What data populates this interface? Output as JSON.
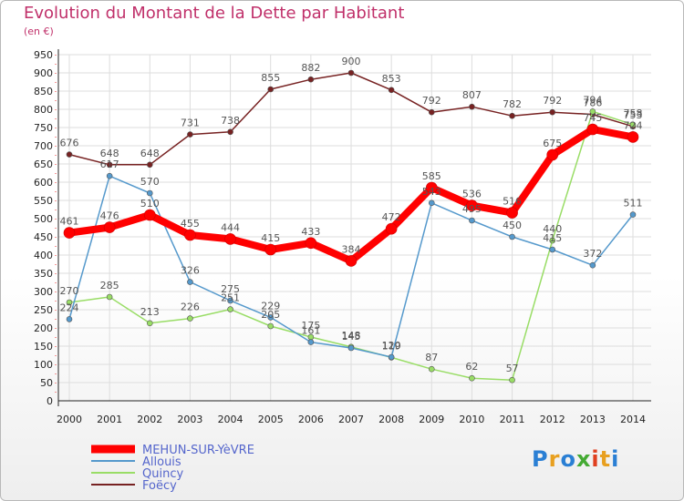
{
  "chart_data": {
    "type": "line",
    "title": "Evolution du Montant de la Dette par Habitant",
    "subtitle": "(en €)",
    "x": [
      "2000",
      "2001",
      "2002",
      "2003",
      "2004",
      "2005",
      "2006",
      "2007",
      "2008",
      "2009",
      "2010",
      "2011",
      "2012",
      "2013",
      "2014"
    ],
    "yticks": [
      0,
      50,
      100,
      150,
      200,
      250,
      300,
      350,
      400,
      450,
      500,
      550,
      600,
      650,
      700,
      750,
      800,
      850,
      900,
      950
    ],
    "ylim": [
      0,
      950
    ],
    "grid": true,
    "legend": "bottom-left",
    "series": [
      {
        "name": "MEHUN-SUR-YèVRE",
        "color": "#ff0000",
        "values": [
          461,
          476,
          510,
          455,
          444,
          415,
          433,
          384,
          472,
          585,
          536,
          516,
          675,
          745,
          724
        ]
      },
      {
        "name": "Allouis",
        "color": "#5599cc",
        "values": [
          224,
          617,
          570,
          326,
          275,
          229,
          161,
          145,
          120,
          543,
          495,
          450,
          415,
          372,
          511
        ]
      },
      {
        "name": "Quincy",
        "color": "#99dd66",
        "values": [
          270,
          285,
          213,
          226,
          251,
          205,
          175,
          148,
          119,
          87,
          62,
          57,
          440,
          794,
          758
        ]
      },
      {
        "name": "Foëcy",
        "color": "#772222",
        "values": [
          676,
          648,
          648,
          731,
          738,
          855,
          882,
          900,
          853,
          792,
          807,
          782,
          792,
          786,
          753
        ]
      }
    ]
  },
  "logo": {
    "text": "Proxiti",
    "colors": [
      "#2a7fd4",
      "#e8a020",
      "#2a7fd4",
      "#44aa33",
      "#e04020",
      "#e8a020",
      "#2a7fd4"
    ]
  }
}
